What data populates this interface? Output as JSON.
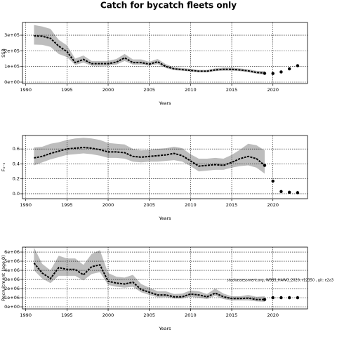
{
  "title": "Catch for bycatch fleets only",
  "chart_data": [
    {
      "type": "line",
      "ylabel": "SSB",
      "xlabel": "Years",
      "xlim": [
        1989.6,
        2024.2
      ],
      "xticks": [
        1990,
        1995,
        2000,
        2005,
        2010,
        2015,
        2020
      ],
      "ylim": [
        -9000,
        381000
      ],
      "yticks": [
        {
          "value": 0,
          "label": "0e+00"
        },
        {
          "value": 100000,
          "label": "1e+05"
        },
        {
          "value": 200000,
          "label": "2e+05"
        },
        {
          "value": 300000,
          "label": "3e+05"
        }
      ],
      "grid": true,
      "x": [
        1991,
        1992,
        1993,
        1994,
        1995,
        1996,
        1997,
        1998,
        1999,
        2000,
        2001,
        2002,
        2003,
        2004,
        2005,
        2006,
        2007,
        2008,
        2009,
        2010,
        2011,
        2012,
        2013,
        2014,
        2015,
        2016,
        2017,
        2018,
        2019
      ],
      "series": [
        {
          "color": "#000000",
          "values": [
            295000,
            293000,
            280000,
            230000,
            195000,
            125000,
            145000,
            118000,
            118000,
            118000,
            128000,
            155000,
            125000,
            125000,
            115000,
            130000,
            100000,
            85000,
            80000,
            75000,
            70000,
            70000,
            78000,
            82000,
            82000,
            78000,
            72000,
            62000,
            58000
          ]
        }
      ],
      "band": {
        "color": "#bdbdbd",
        "lower": [
          240000,
          238000,
          225000,
          180000,
          160000,
          110000,
          125000,
          105000,
          105000,
          105000,
          112000,
          135000,
          112000,
          112000,
          105000,
          115000,
          90000,
          77000,
          72000,
          68000,
          63000,
          63000,
          70000,
          73000,
          73000,
          70000,
          64000,
          54000,
          48000
        ],
        "upper": [
          365000,
          355000,
          340000,
          270000,
          235000,
          150000,
          170000,
          135000,
          135000,
          135000,
          148000,
          180000,
          145000,
          145000,
          130000,
          148000,
          115000,
          95000,
          90000,
          85000,
          78000,
          78000,
          88000,
          93000,
          93000,
          88000,
          82000,
          72000,
          70000
        ]
      },
      "points": {
        "color": "#000000",
        "x": [
          2019,
          2020,
          2021,
          2022,
          2023
        ],
        "values": [
          56000,
          55000,
          65000,
          85000,
          105000
        ]
      }
    },
    {
      "type": "line",
      "ylabel": "F₃₋₆",
      "xlabel": "Years",
      "xlim": [
        1989.6,
        2024.2
      ],
      "xticks": [
        1990,
        1995,
        2000,
        2005,
        2010,
        2015,
        2020
      ],
      "ylim": [
        -0.066,
        0.78
      ],
      "yticks": [
        {
          "value": 0,
          "label": "0.0"
        },
        0.2,
        0.4,
        0.6
      ],
      "grid": true,
      "x": [
        1991,
        1992,
        1993,
        1994,
        1995,
        1996,
        1997,
        1998,
        1999,
        2000,
        2001,
        2002,
        2003,
        2004,
        2005,
        2006,
        2007,
        2008,
        2009,
        2010,
        2011,
        2012,
        2013,
        2014,
        2015,
        2016,
        2017,
        2018,
        2019
      ],
      "series": [
        {
          "color": "#000000",
          "values": [
            0.48,
            0.5,
            0.54,
            0.57,
            0.6,
            0.61,
            0.62,
            0.61,
            0.59,
            0.56,
            0.56,
            0.55,
            0.5,
            0.49,
            0.5,
            0.51,
            0.52,
            0.54,
            0.51,
            0.44,
            0.37,
            0.38,
            0.39,
            0.38,
            0.42,
            0.47,
            0.5,
            0.47,
            0.38
          ]
        }
      ],
      "band": {
        "color": "#bdbdbd",
        "lower": [
          0.38,
          0.42,
          0.46,
          0.49,
          0.52,
          0.53,
          0.54,
          0.53,
          0.51,
          0.48,
          0.48,
          0.47,
          0.43,
          0.42,
          0.43,
          0.43,
          0.44,
          0.45,
          0.43,
          0.37,
          0.3,
          0.31,
          0.32,
          0.32,
          0.35,
          0.37,
          0.38,
          0.35,
          0.27
        ],
        "upper": [
          0.62,
          0.63,
          0.67,
          0.69,
          0.72,
          0.74,
          0.75,
          0.74,
          0.72,
          0.68,
          0.67,
          0.66,
          0.6,
          0.58,
          0.59,
          0.6,
          0.61,
          0.63,
          0.61,
          0.53,
          0.47,
          0.47,
          0.48,
          0.47,
          0.52,
          0.59,
          0.67,
          0.65,
          0.58
        ]
      },
      "points": {
        "color": "#000000",
        "x": [
          2019,
          2020,
          2021,
          2022,
          2023
        ],
        "values": [
          0.38,
          0.17,
          0.03,
          0.02,
          0.015
        ]
      }
    },
    {
      "type": "line",
      "ylabel": "Recruitment (age 0)",
      "xlabel": "Years",
      "annotation": "stockassessment.org, WBSS_HAWG_2020, r12350 , git: e2a3",
      "xlim": [
        1989.6,
        2024.2
      ],
      "xticks": [
        1990,
        1995,
        2000,
        2005,
        2010,
        2015,
        2020
      ],
      "ylim": [
        -230000,
        6540000
      ],
      "yticks": [
        {
          "value": 0,
          "label": "0e+00"
        },
        {
          "value": 1000000,
          "label": "1e+06"
        },
        {
          "value": 2000000,
          "label": "2e+06"
        },
        {
          "value": 3000000,
          "label": "3e+06"
        },
        {
          "value": 4000000,
          "label": "4e+06"
        },
        {
          "value": 5000000,
          "label": "5e+06"
        },
        {
          "value": 6000000,
          "label": "6e+06"
        }
      ],
      "grid": true,
      "x": [
        1991,
        1992,
        1993,
        1994,
        1995,
        1996,
        1997,
        1998,
        1999,
        2000,
        2001,
        2002,
        2003,
        2004,
        2005,
        2006,
        2007,
        2008,
        2009,
        2010,
        2011,
        2012,
        2013,
        2014,
        2015,
        2016,
        2017,
        2018,
        2019
      ],
      "series": [
        {
          "color": "#000000",
          "values": [
            4800000,
            3700000,
            3100000,
            4300000,
            4100000,
            4100000,
            3500000,
            4400000,
            4600000,
            2800000,
            2600000,
            2500000,
            2700000,
            1900000,
            1600000,
            1300000,
            1300000,
            1100000,
            1100000,
            1400000,
            1300000,
            1100000,
            1500000,
            1100000,
            900000,
            900000,
            950000,
            800000,
            800000
          ]
        }
      ],
      "band": {
        "color": "#bdbdbd",
        "lower": [
          4000000,
          3100000,
          2600000,
          3400000,
          3400000,
          3400000,
          2900000,
          3600000,
          3800000,
          2400000,
          2200000,
          2100000,
          2200000,
          1600000,
          1300000,
          1050000,
          1050000,
          900000,
          900000,
          1100000,
          1000000,
          850000,
          1200000,
          850000,
          700000,
          700000,
          700000,
          600000,
          550000
        ],
        "upper": [
          6500000,
          4700000,
          4000000,
          5600000,
          5300000,
          5300000,
          4600000,
          5800000,
          6200000,
          3700000,
          3300000,
          3200000,
          3500000,
          2500000,
          2100000,
          1700000,
          1700000,
          1400000,
          1450000,
          1800000,
          1700000,
          1400000,
          2000000,
          1450000,
          1150000,
          1150000,
          1300000,
          1100000,
          1150000
        ]
      },
      "points": {
        "color": "#000000",
        "x": [
          2019,
          2020,
          2021,
          2022,
          2023
        ],
        "values": [
          800000,
          1000000,
          1000000,
          1000000,
          1000000
        ]
      }
    }
  ]
}
